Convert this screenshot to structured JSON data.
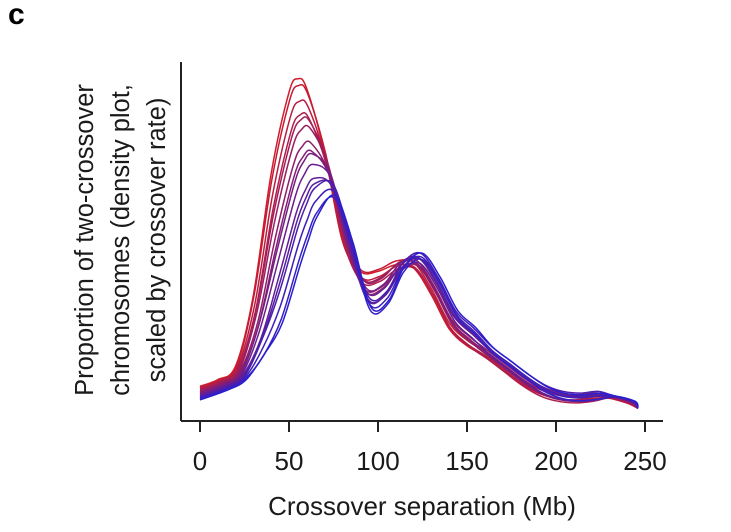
{
  "panel_label": "c",
  "chart_data": {
    "type": "line",
    "title": "",
    "xlabel": "Crossover separation (Mb)",
    "ylabel_lines": [
      "Proportion of two-crossover",
      "chromosomes (density plot,",
      "scaled by crossover rate)"
    ],
    "xlim": [
      -5,
      255
    ],
    "ylim": [
      0,
      1.0
    ],
    "xticks": [
      0,
      50,
      100,
      150,
      200,
      250
    ],
    "xtick_labels": [
      "0",
      "50",
      "100",
      "150",
      "200",
      "250"
    ],
    "yticks_shown": false,
    "color_scale": {
      "start": "#d01c2a",
      "end": "#2a1fcf"
    },
    "series_count": 16,
    "x": [
      0,
      10,
      20,
      30,
      40,
      50,
      55,
      60,
      70,
      80,
      90,
      100,
      110,
      120,
      130,
      140,
      150,
      160,
      170,
      180,
      190,
      200,
      210,
      220,
      230,
      240,
      246
    ],
    "first_series": [
      0.07,
      0.09,
      0.13,
      0.34,
      0.7,
      0.94,
      0.98,
      0.95,
      0.76,
      0.5,
      0.41,
      0.41,
      0.43,
      0.42,
      0.34,
      0.24,
      0.19,
      0.16,
      0.12,
      0.08,
      0.05,
      0.035,
      0.03,
      0.035,
      0.035,
      0.02,
      0.005
    ],
    "last_series": [
      0.03,
      0.06,
      0.09,
      0.16,
      0.25,
      0.42,
      0.5,
      0.57,
      0.63,
      0.49,
      0.3,
      0.32,
      0.42,
      0.46,
      0.39,
      0.29,
      0.24,
      0.18,
      0.14,
      0.1,
      0.065,
      0.045,
      0.04,
      0.045,
      0.04,
      0.025,
      0.005
    ]
  }
}
